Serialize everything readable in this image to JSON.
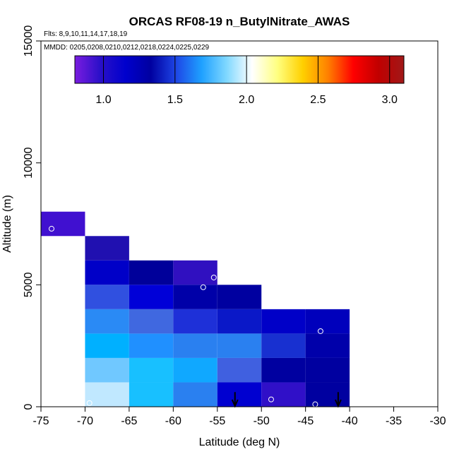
{
  "chart_data": {
    "type": "heatmap",
    "title": "ORCAS RF08-19 n_ButylNitrate_AWAS",
    "flights_text": "Flts: 8,9,10,11,14,17,18,19",
    "dates_text": "MMDD: 0205,0208,0210,0212,0218,0224,0225,0229",
    "xlabel": "Latitude (deg N)",
    "ylabel": "Altitude (m)",
    "xlim": [
      -75,
      -30
    ],
    "ylim": [
      0,
      15000
    ],
    "x_ticks": [
      -75,
      -70,
      -65,
      -60,
      -55,
      -50,
      -45,
      -40,
      -35,
      -30
    ],
    "y_ticks": [
      0,
      5000,
      10000,
      15000
    ],
    "colorbar": {
      "range": [
        0.8,
        3.1
      ],
      "ticks": [
        1.0,
        1.5,
        2.0,
        2.5,
        3.0
      ],
      "tick_labels": [
        "1.0",
        "1.5",
        "2.0",
        "2.5",
        "3.0"
      ],
      "colors": [
        "#7a1ce0",
        "#2a10c8",
        "#0000cd",
        "#0000a0",
        "#1e46e6",
        "#1ea0ff",
        "#80d8ff",
        "#ffffff",
        "#ffff80",
        "#ffd000",
        "#ff8000",
        "#ff0000",
        "#c00000",
        "#a01818"
      ]
    },
    "cells": [
      {
        "x0": -75,
        "x1": -70,
        "y0": 7000,
        "y1": 8000,
        "color": "#4010d0"
      },
      {
        "x0": -70,
        "x1": -65,
        "y0": 6000,
        "y1": 7000,
        "color": "#2010b0"
      },
      {
        "x0": -70,
        "x1": -65,
        "y0": 5000,
        "y1": 6000,
        "color": "#0000c8"
      },
      {
        "x0": -65,
        "x1": -60,
        "y0": 5000,
        "y1": 6000,
        "color": "#00009a"
      },
      {
        "x0": -60,
        "x1": -55,
        "y0": 5000,
        "y1": 6000,
        "color": "#3010c0"
      },
      {
        "x0": -70,
        "x1": -65,
        "y0": 4000,
        "y1": 5000,
        "color": "#3050e0"
      },
      {
        "x0": -65,
        "x1": -60,
        "y0": 4000,
        "y1": 5000,
        "color": "#0000d8"
      },
      {
        "x0": -60,
        "x1": -55,
        "y0": 4000,
        "y1": 5000,
        "color": "#0000a8"
      },
      {
        "x0": -55,
        "x1": -50,
        "y0": 4000,
        "y1": 5000,
        "color": "#0000a0"
      },
      {
        "x0": -70,
        "x1": -65,
        "y0": 3000,
        "y1": 4000,
        "color": "#2a8af5"
      },
      {
        "x0": -65,
        "x1": -60,
        "y0": 3000,
        "y1": 4000,
        "color": "#4068e0"
      },
      {
        "x0": -60,
        "x1": -55,
        "y0": 3000,
        "y1": 4000,
        "color": "#1e30d8"
      },
      {
        "x0": -55,
        "x1": -50,
        "y0": 3000,
        "y1": 4000,
        "color": "#0a18c8"
      },
      {
        "x0": -50,
        "x1": -45,
        "y0": 3000,
        "y1": 4000,
        "color": "#0000c8"
      },
      {
        "x0": -45,
        "x1": -40,
        "y0": 3000,
        "y1": 4000,
        "color": "#0000bc"
      },
      {
        "x0": -70,
        "x1": -65,
        "y0": 2000,
        "y1": 3000,
        "color": "#00b0ff"
      },
      {
        "x0": -65,
        "x1": -60,
        "y0": 2000,
        "y1": 3000,
        "color": "#2090ff"
      },
      {
        "x0": -60,
        "x1": -55,
        "y0": 2000,
        "y1": 3000,
        "color": "#2a80f0"
      },
      {
        "x0": -55,
        "x1": -50,
        "y0": 2000,
        "y1": 3000,
        "color": "#2a80f0"
      },
      {
        "x0": -50,
        "x1": -45,
        "y0": 2000,
        "y1": 3000,
        "color": "#1830d0"
      },
      {
        "x0": -45,
        "x1": -40,
        "y0": 2000,
        "y1": 3000,
        "color": "#0000aa"
      },
      {
        "x0": -70,
        "x1": -65,
        "y0": 1000,
        "y1": 2000,
        "color": "#70c8ff"
      },
      {
        "x0": -65,
        "x1": -60,
        "y0": 1000,
        "y1": 2000,
        "color": "#18c0ff"
      },
      {
        "x0": -60,
        "x1": -55,
        "y0": 1000,
        "y1": 2000,
        "color": "#10a8ff"
      },
      {
        "x0": -55,
        "x1": -50,
        "y0": 1000,
        "y1": 2000,
        "color": "#4060e0"
      },
      {
        "x0": -50,
        "x1": -45,
        "y0": 1000,
        "y1": 2000,
        "color": "#0000a0"
      },
      {
        "x0": -45,
        "x1": -40,
        "y0": 1000,
        "y1": 2000,
        "color": "#0000a0"
      },
      {
        "x0": -70,
        "x1": -65,
        "y0": 0,
        "y1": 1000,
        "color": "#c0e8ff"
      },
      {
        "x0": -65,
        "x1": -60,
        "y0": 0,
        "y1": 1000,
        "color": "#18c0ff"
      },
      {
        "x0": -60,
        "x1": -55,
        "y0": 0,
        "y1": 1000,
        "color": "#2a80f0"
      },
      {
        "x0": -55,
        "x1": -50,
        "y0": 0,
        "y1": 1000,
        "color": "#0000d0"
      },
      {
        "x0": -50,
        "x1": -45,
        "y0": 0,
        "y1": 1000,
        "color": "#3010c8"
      },
      {
        "x0": -45,
        "x1": -40,
        "y0": 0,
        "y1": 1000,
        "color": "#0000a0"
      }
    ],
    "circles": [
      {
        "x": -73.8,
        "y": 7300
      },
      {
        "x": -55.4,
        "y": 5300
      },
      {
        "x": -56.6,
        "y": 4900
      },
      {
        "x": -43.3,
        "y": 3100
      },
      {
        "x": -48.9,
        "y": 300
      },
      {
        "x": -69.5,
        "y": 150
      },
      {
        "x": -43.9,
        "y": 100
      }
    ],
    "arrows": [
      {
        "x": -53.0,
        "y_top": 600,
        "y_bottom": 0
      },
      {
        "x": -41.3,
        "y_top": 600,
        "y_bottom": 0
      }
    ]
  }
}
